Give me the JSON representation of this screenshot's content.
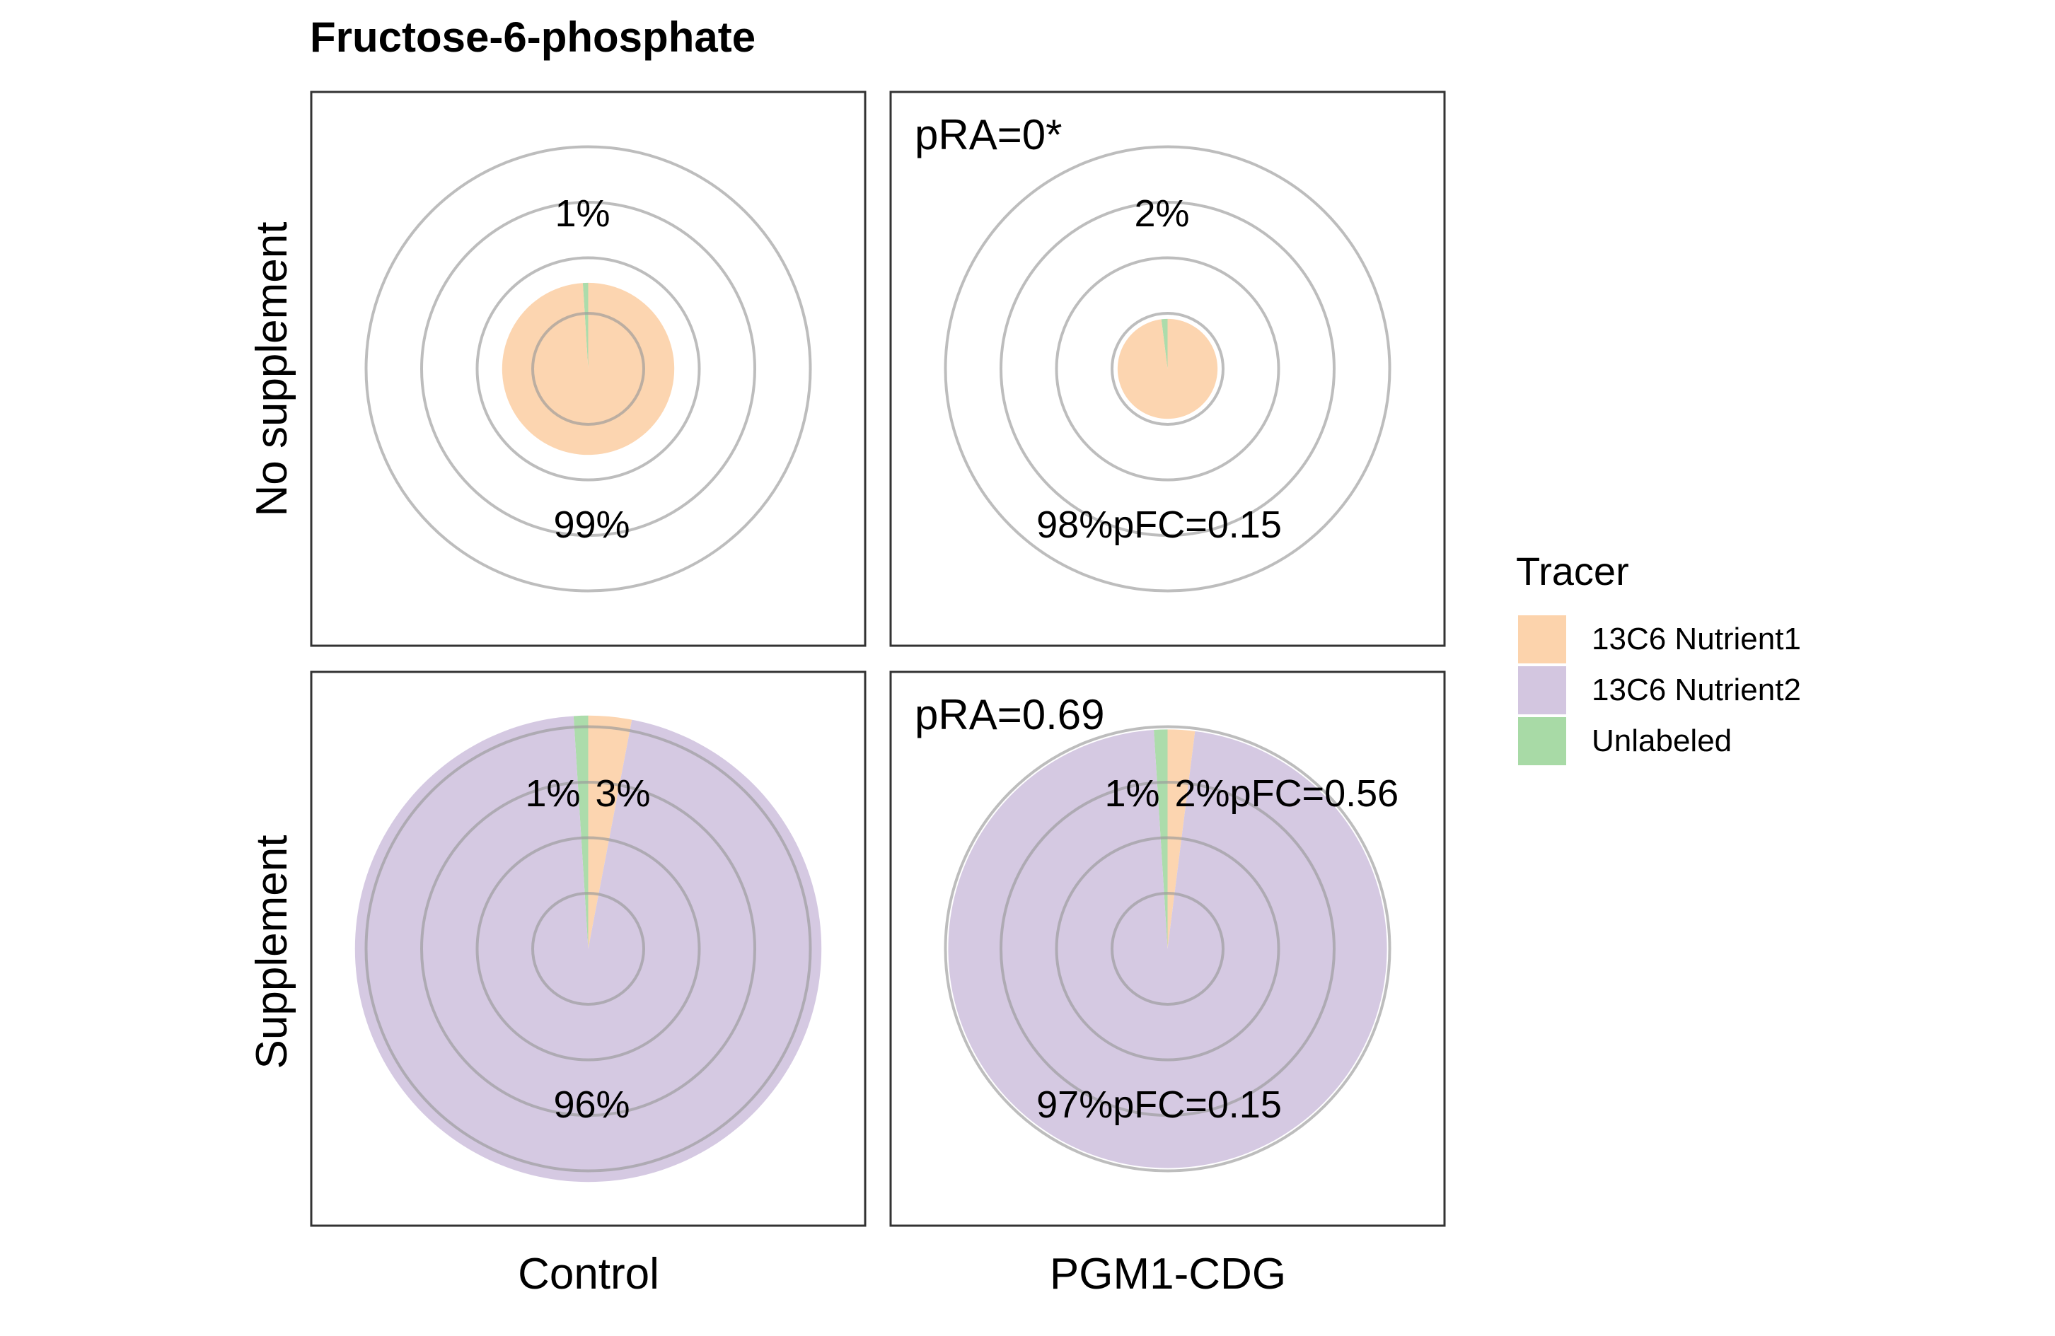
{
  "chart_data": {
    "type": "pie",
    "title": "Fructose-6-phosphate",
    "rows": [
      "No supplement",
      "Supplement"
    ],
    "columns": [
      "Control",
      "PGM1-CDG"
    ],
    "legend": {
      "title": "Tracer",
      "position": "right",
      "entries": [
        {
          "name": "13C6 Nutrient1",
          "color": "#FCD3AC"
        },
        {
          "name": "13C6 Nutrient2",
          "color": "#D3C6E0"
        },
        {
          "name": "Unlabeled",
          "color": "#A8DAA6"
        }
      ]
    },
    "panels": [
      {
        "row": "No supplement",
        "column": "Control",
        "radius_level": 1.55,
        "slices": [
          {
            "tracer": "Unlabeled",
            "value": 1
          },
          {
            "tracer": "13C6 Nutrient1",
            "value": 99
          }
        ],
        "labels": {
          "top": "1%",
          "bottom": "99%"
        },
        "pRA": "",
        "pFC_top": "",
        "pFC_bottom": ""
      },
      {
        "row": "No supplement",
        "column": "PGM1-CDG",
        "radius_level": 0.9,
        "slices": [
          {
            "tracer": "Unlabeled",
            "value": 2
          },
          {
            "tracer": "13C6 Nutrient1",
            "value": 98
          }
        ],
        "labels": {
          "top": "2%",
          "bottom": "98%"
        },
        "pRA": "pRA=0*",
        "pFC_top": "",
        "pFC_bottom": "pFC=0.15"
      },
      {
        "row": "Supplement",
        "column": "Control",
        "radius_level": 4.2,
        "slices": [
          {
            "tracer": "Unlabeled",
            "value": 1
          },
          {
            "tracer": "13C6 Nutrient1",
            "value": 3
          },
          {
            "tracer": "13C6 Nutrient2",
            "value": 96
          }
        ],
        "labels": {
          "top_left": "1%",
          "top_right": "3%",
          "bottom": "96%"
        },
        "pRA": "",
        "pFC_top": "",
        "pFC_bottom": ""
      },
      {
        "row": "Supplement",
        "column": "PGM1-CDG",
        "radius_level": 3.95,
        "slices": [
          {
            "tracer": "Unlabeled",
            "value": 1
          },
          {
            "tracer": "13C6 Nutrient1",
            "value": 2
          },
          {
            "tracer": "13C6 Nutrient2",
            "value": 97
          }
        ],
        "labels": {
          "top_left": "1%",
          "top_right": "2%",
          "bottom": "97%"
        },
        "pRA": "pRA=0.69",
        "pFC_top": "pFC=0.56",
        "pFC_bottom": "pFC=0.15"
      }
    ]
  }
}
